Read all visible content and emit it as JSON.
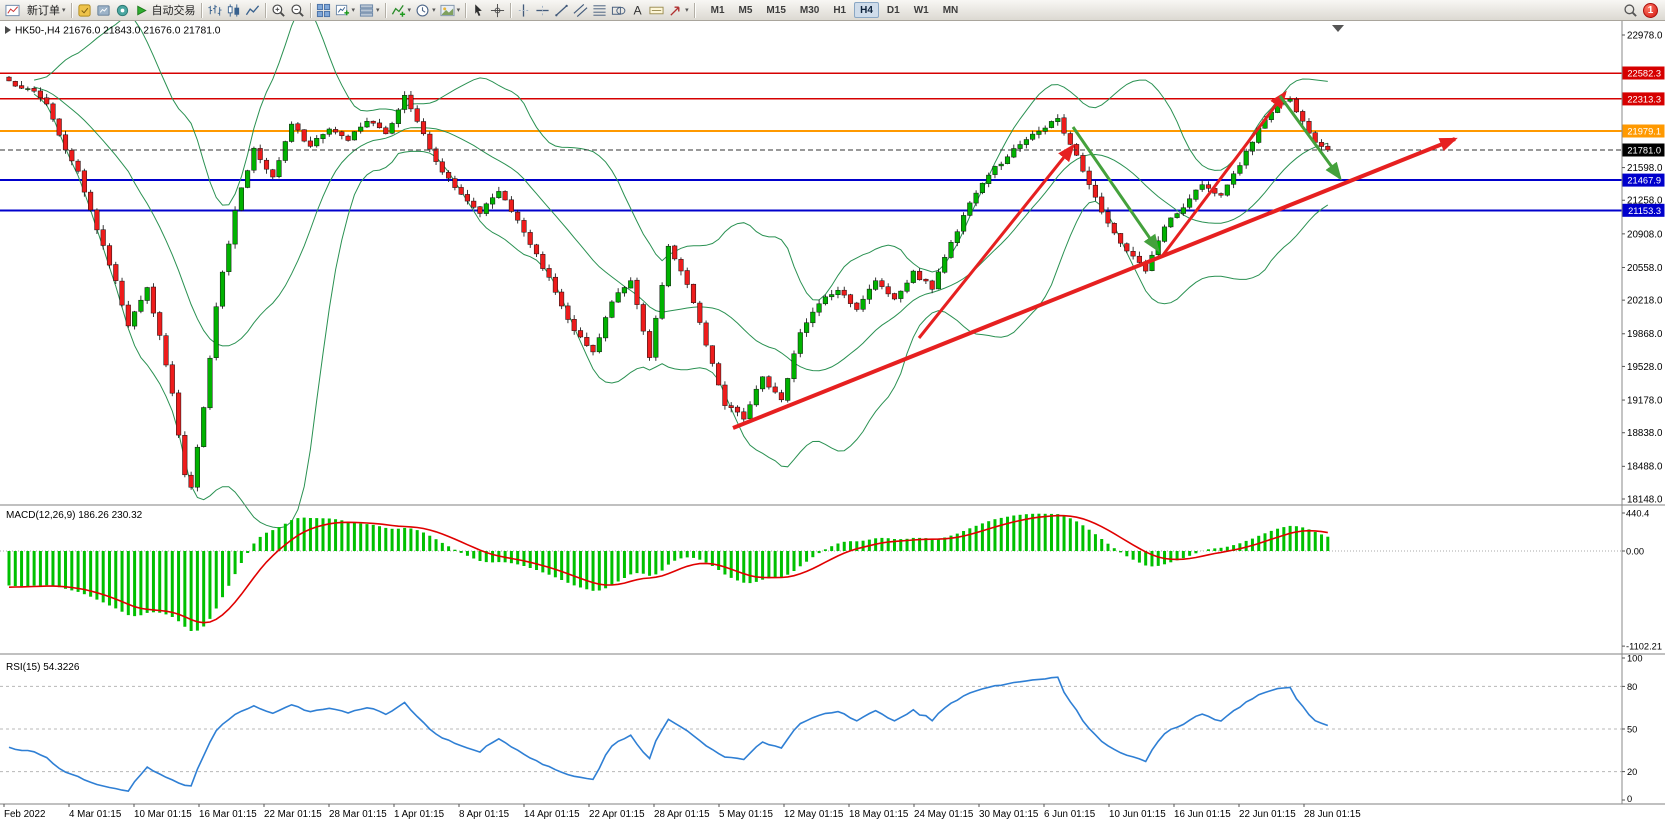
{
  "toolbar": {
    "items": [
      {
        "kind": "icon",
        "name": "chart-window-icon"
      },
      {
        "kind": "button",
        "name": "new-order-button",
        "label": "新订单",
        "dropdown": true
      },
      {
        "kind": "sep"
      },
      {
        "kind": "icon",
        "name": "metaeditor-icon"
      },
      {
        "kind": "icon",
        "name": "market-icon"
      },
      {
        "kind": "icon",
        "name": "signals-icon"
      },
      {
        "kind": "button",
        "name": "auto-trading-button",
        "label": "自动交易",
        "icon": "autotrading-icon"
      },
      {
        "kind": "sep"
      },
      {
        "kind": "icon",
        "name": "bar-chart-icon"
      },
      {
        "kind": "icon",
        "name": "candlestick-chart-icon"
      },
      {
        "kind": "icon",
        "name": "line-chart-icon"
      },
      {
        "kind": "sep"
      },
      {
        "kind": "icon",
        "name": "zoom-in-icon"
      },
      {
        "kind": "icon",
        "name": "zoom-out-icon"
      },
      {
        "kind": "sep"
      },
      {
        "kind": "icon",
        "name": "tile-windows-icon"
      },
      {
        "kind": "icon",
        "name": "new-chart-icon",
        "dropdown": true
      },
      {
        "kind": "icon",
        "name": "profiles-icon",
        "dropdown": true
      },
      {
        "kind": "sep"
      },
      {
        "kind": "icon",
        "name": "indicators-icon",
        "dropdown": true
      },
      {
        "kind": "icon",
        "name": "periods-icon",
        "dropdown": true
      },
      {
        "kind": "icon",
        "name": "templates-icon",
        "dropdown": true
      },
      {
        "kind": "sep"
      },
      {
        "kind": "icon",
        "name": "cursor-icon"
      },
      {
        "kind": "icon",
        "name": "crosshair-icon"
      },
      {
        "kind": "sep"
      },
      {
        "kind": "icon",
        "name": "vertical-line-icon"
      },
      {
        "kind": "icon",
        "name": "horizontal-line-icon"
      },
      {
        "kind": "icon",
        "name": "trendline-icon"
      },
      {
        "kind": "icon",
        "name": "channel-icon"
      },
      {
        "kind": "icon",
        "name": "fibonacci-icon"
      },
      {
        "kind": "icon",
        "name": "shapes-icon"
      },
      {
        "kind": "icon",
        "name": "text-icon"
      },
      {
        "kind": "icon",
        "name": "label-icon"
      },
      {
        "kind": "icon",
        "name": "arrow-tools-icon",
        "dropdown": true
      },
      {
        "kind": "sep"
      }
    ],
    "timeframes": [
      "M1",
      "M5",
      "M15",
      "M30",
      "H1",
      "H4",
      "D1",
      "W1",
      "MN"
    ],
    "active_timeframe": "H4",
    "notification_badge": "1"
  },
  "chart_data": {
    "type": "candlestick",
    "symbol": "HK50-",
    "timeframe": "H4",
    "title": "HK50-,H4 21676.0 21843.0 21676.0 21781.0",
    "ohlc": {
      "open": "21676.0",
      "high": "21843.0",
      "low": "21676.0",
      "close": "21781.0"
    },
    "price_axis": {
      "min": 18148.0,
      "max": 22978.0,
      "plain_ticks": [
        "22978.0",
        "21598.0",
        "21258.0",
        "20908.0",
        "20558.0",
        "20218.0",
        "19868.0",
        "19528.0",
        "19178.0",
        "18838.0",
        "18488.0",
        "18148.0"
      ]
    },
    "levels": [
      {
        "price": 22582.3,
        "label": "22582.3",
        "color": "#d60000",
        "width": 1.5
      },
      {
        "price": 22313.3,
        "label": "22313.3",
        "color": "#d60000",
        "width": 1.5
      },
      {
        "price": 21979.1,
        "label": "21979.1",
        "color": "#ff9900",
        "width": 2
      },
      {
        "price": 21467.9,
        "label": "21467.9",
        "color": "#0000cc",
        "width": 2
      },
      {
        "price": 21153.3,
        "label": "21153.3",
        "color": "#0000cc",
        "width": 2
      }
    ],
    "current_price": {
      "price": 21781.0,
      "label": "21781.0",
      "color": "#000000"
    },
    "candle_colors": {
      "up": "#00b200",
      "down": "#ee1c1c"
    },
    "candles": {
      "count": 211,
      "close_anchors": [
        [
          0,
          22500
        ],
        [
          3,
          22420
        ],
        [
          6,
          22260
        ],
        [
          9,
          21780
        ],
        [
          11,
          21560
        ],
        [
          14,
          20950
        ],
        [
          17,
          20420
        ],
        [
          19,
          19950
        ],
        [
          22,
          20350
        ],
        [
          24,
          19850
        ],
        [
          26,
          19250
        ],
        [
          28,
          18400
        ],
        [
          29,
          18270
        ],
        [
          31,
          19100
        ],
        [
          33,
          20150
        ],
        [
          36,
          21150
        ],
        [
          39,
          21800
        ],
        [
          42,
          21500
        ],
        [
          45,
          22050
        ],
        [
          48,
          21820
        ],
        [
          51,
          22000
        ],
        [
          54,
          21880
        ],
        [
          57,
          22080
        ],
        [
          60,
          21950
        ],
        [
          63,
          22350
        ],
        [
          66,
          21950
        ],
        [
          69,
          21550
        ],
        [
          72,
          21320
        ],
        [
          75,
          21120
        ],
        [
          78,
          21350
        ],
        [
          81,
          21050
        ],
        [
          84,
          20700
        ],
        [
          87,
          20300
        ],
        [
          90,
          19900
        ],
        [
          93,
          19680
        ],
        [
          96,
          20200
        ],
        [
          99,
          20420
        ],
        [
          102,
          19620
        ],
        [
          105,
          20780
        ],
        [
          108,
          20380
        ],
        [
          111,
          19750
        ],
        [
          114,
          19120
        ],
        [
          117,
          18980
        ],
        [
          120,
          19420
        ],
        [
          123,
          19180
        ],
        [
          126,
          19880
        ],
        [
          129,
          20180
        ],
        [
          132,
          20320
        ],
        [
          135,
          20120
        ],
        [
          138,
          20420
        ],
        [
          141,
          20230
        ],
        [
          144,
          20520
        ],
        [
          147,
          20330
        ],
        [
          150,
          20820
        ],
        [
          153,
          21230
        ],
        [
          156,
          21520
        ],
        [
          159,
          21710
        ],
        [
          162,
          21890
        ],
        [
          165,
          22010
        ],
        [
          167,
          22110
        ],
        [
          169,
          21840
        ],
        [
          172,
          21420
        ],
        [
          175,
          21020
        ],
        [
          178,
          20730
        ],
        [
          181,
          20520
        ],
        [
          184,
          20980
        ],
        [
          187,
          21180
        ],
        [
          190,
          21420
        ],
        [
          193,
          21310
        ],
        [
          196,
          21620
        ],
        [
          199,
          22010
        ],
        [
          202,
          22260
        ],
        [
          204,
          22310
        ],
        [
          206,
          22080
        ],
        [
          208,
          21860
        ],
        [
          210,
          21781
        ]
      ]
    },
    "bollinger": {
      "period": 20,
      "deviation": 2,
      "color": "#2a9152"
    },
    "macd": {
      "name": "MACD(12,26,9)",
      "value": "186.26",
      "signal_value": "230.32",
      "axis_ticks": [
        "440.4",
        "0.00",
        "-1102.21"
      ],
      "histogram_color": "#00c000",
      "signal_color": "#e00000"
    },
    "rsi": {
      "name": "RSI(15)",
      "value": "54.3226",
      "axis_ticks": [
        "100",
        "80",
        "50",
        "20",
        "0"
      ],
      "levels": [
        80,
        50,
        20
      ],
      "color": "#2f7fd4"
    },
    "time_axis": [
      "Feb 2022",
      "4 Mar 01:15",
      "10 Mar 01:15",
      "16 Mar 01:15",
      "22 Mar 01:15",
      "28 Mar 01:15",
      "1 Apr 01:15",
      "8 Apr 01:15",
      "14 Apr 01:15",
      "22 Apr 01:15",
      "28 Apr 01:15",
      "5 May 01:15",
      "12 May 01:15",
      "18 May 01:15",
      "24 May 01:15",
      "30 May 01:15",
      "6 Jun 01:15",
      "10 Jun 01:15",
      "16 Jun 01:15",
      "22 Jun 01:15",
      "28 Jun 01:15"
    ],
    "arrows": [
      {
        "from": [
          733,
          407
        ],
        "to": [
          1455,
          118
        ],
        "color": "#e62020",
        "width": 4
      },
      {
        "from": [
          919,
          317
        ],
        "to": [
          1073,
          125
        ],
        "color": "#e62020",
        "width": 3
      },
      {
        "from": [
          1073,
          106
        ],
        "to": [
          1158,
          229
        ],
        "color": "#44a13c",
        "width": 3
      },
      {
        "from": [
          1163,
          234
        ],
        "to": [
          1285,
          72
        ],
        "color": "#e62020",
        "width": 3
      },
      {
        "from": [
          1280,
          75
        ],
        "to": [
          1340,
          157
        ],
        "color": "#44a13c",
        "width": 3
      }
    ]
  }
}
